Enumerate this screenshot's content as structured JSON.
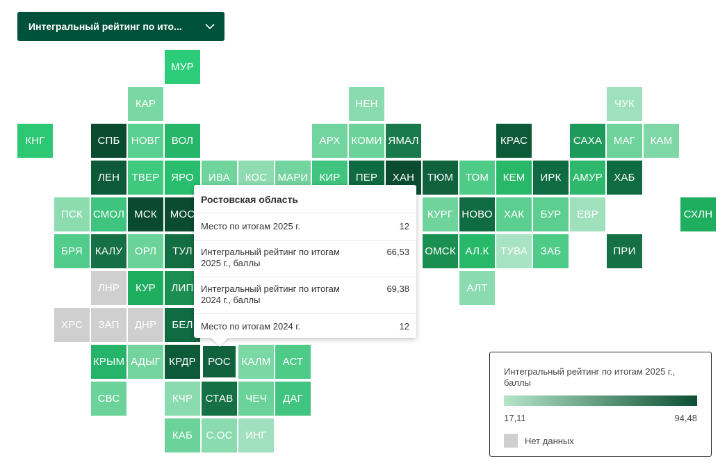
{
  "dropdown": {
    "label": "Интегральный рейтинг по ито...",
    "chevron_icon": "chevron-down-icon"
  },
  "tiles": [
    {
      "code": "МУР",
      "row": 0,
      "col": 4,
      "color": "#2dcc7a"
    },
    {
      "code": "КАР",
      "row": 1,
      "col": 3,
      "color": "#79d8a3"
    },
    {
      "code": "НЕН",
      "row": 1,
      "col": 9,
      "color": "#8adcb0"
    },
    {
      "code": "ЧУК",
      "row": 1,
      "col": 16,
      "color": "#9fe0bd"
    },
    {
      "code": "КНГ",
      "row": 2,
      "col": 0,
      "color": "#2cc874"
    },
    {
      "code": "СПБ",
      "row": 2,
      "col": 2,
      "color": "#0b4c31"
    },
    {
      "code": "НОВГ",
      "row": 2,
      "col": 3,
      "color": "#59d08f"
    },
    {
      "code": "ВОЛ",
      "row": 2,
      "col": 4,
      "color": "#26b569"
    },
    {
      "code": "АРХ",
      "row": 2,
      "col": 8,
      "color": "#72d49e"
    },
    {
      "code": "КОМИ",
      "row": 2,
      "col": 9,
      "color": "#6bd39a"
    },
    {
      "code": "ЯМАЛ",
      "row": 2,
      "col": 10,
      "color": "#187a4a"
    },
    {
      "code": "КРАС",
      "row": 2,
      "col": 13,
      "color": "#0d5a39"
    },
    {
      "code": "САХА",
      "row": 2,
      "col": 15,
      "color": "#1e9b5a"
    },
    {
      "code": "МАГ",
      "row": 2,
      "col": 16,
      "color": "#6ed29b"
    },
    {
      "code": "КАМ",
      "row": 2,
      "col": 17,
      "color": "#7fd7a7"
    },
    {
      "code": "ЛЕН",
      "row": 3,
      "col": 2,
      "color": "#0d5a39"
    },
    {
      "code": "ТВЕР",
      "row": 3,
      "col": 3,
      "color": "#3ec97f"
    },
    {
      "code": "ЯРО",
      "row": 3,
      "col": 4,
      "color": "#28be6e"
    },
    {
      "code": "ИВА",
      "row": 3,
      "col": 5,
      "color": "#70d59d"
    },
    {
      "code": "КОС",
      "row": 3,
      "col": 6,
      "color": "#8fdcb2"
    },
    {
      "code": "МАРИ",
      "row": 3,
      "col": 7,
      "color": "#74d49f"
    },
    {
      "code": "КИР",
      "row": 3,
      "col": 8,
      "color": "#40c47f"
    },
    {
      "code": "ПЕР",
      "row": 3,
      "col": 9,
      "color": "#0f6b41"
    },
    {
      "code": "ХАН",
      "row": 3,
      "col": 10,
      "color": "#0b4c31"
    },
    {
      "code": "ТЮМ",
      "row": 3,
      "col": 11,
      "color": "#10623d"
    },
    {
      "code": "ТОМ",
      "row": 3,
      "col": 12,
      "color": "#4fcb88"
    },
    {
      "code": "КЕМ",
      "row": 3,
      "col": 13,
      "color": "#27b86a"
    },
    {
      "code": "ИРК",
      "row": 3,
      "col": 14,
      "color": "#0f6b41"
    },
    {
      "code": "АМУР",
      "row": 3,
      "col": 15,
      "color": "#2eb86e"
    },
    {
      "code": "ХАБ",
      "row": 3,
      "col": 16,
      "color": "#0f6b41"
    },
    {
      "code": "ПСК",
      "row": 4,
      "col": 1,
      "color": "#8cdcb0"
    },
    {
      "code": "СМОЛ",
      "row": 4,
      "col": 2,
      "color": "#3fc47f"
    },
    {
      "code": "МСК",
      "row": 4,
      "col": 3,
      "color": "#0a4a30"
    },
    {
      "code": "МОС",
      "row": 4,
      "col": 4,
      "color": "#0b4c31"
    },
    {
      "code": "КУРГ",
      "row": 4,
      "col": 11,
      "color": "#6fd39c"
    },
    {
      "code": "НОВО",
      "row": 4,
      "col": 12,
      "color": "#0f6b41"
    },
    {
      "code": "ХАК",
      "row": 4,
      "col": 13,
      "color": "#5ccf90"
    },
    {
      "code": "БУР",
      "row": 4,
      "col": 14,
      "color": "#5ccf90"
    },
    {
      "code": "ЕВР",
      "row": 4,
      "col": 15,
      "color": "#9fe0bd"
    },
    {
      "code": "СХЛН",
      "row": 4,
      "col": 18,
      "color": "#1fae60"
    },
    {
      "code": "БРЯ",
      "row": 5,
      "col": 1,
      "color": "#52cc8a"
    },
    {
      "code": "КАЛУ",
      "row": 5,
      "col": 2,
      "color": "#157145"
    },
    {
      "code": "ОРЛ",
      "row": 5,
      "col": 3,
      "color": "#6bd39a"
    },
    {
      "code": "ТУЛ",
      "row": 5,
      "col": 4,
      "color": "#146e43"
    },
    {
      "code": "ОМСК",
      "row": 5,
      "col": 11,
      "color": "#1b8e52"
    },
    {
      "code": "АЛ.К",
      "row": 5,
      "col": 12,
      "color": "#27b86a"
    },
    {
      "code": "ТУВА",
      "row": 5,
      "col": 13,
      "color": "#a8e3c4"
    },
    {
      "code": "ЗАБ",
      "row": 5,
      "col": 14,
      "color": "#4fcb88"
    },
    {
      "code": "ПРИ",
      "row": 5,
      "col": 16,
      "color": "#157145"
    },
    {
      "code": "ЛНР",
      "row": 6,
      "col": 2,
      "color": "#cfcfcf"
    },
    {
      "code": "КУР",
      "row": 6,
      "col": 3,
      "color": "#1fae60"
    },
    {
      "code": "ЛИП",
      "row": 6,
      "col": 4,
      "color": "#1b8e52"
    },
    {
      "code": "АЛТ",
      "row": 6,
      "col": 12,
      "color": "#8adcb0"
    },
    {
      "code": "ХРС",
      "row": 7,
      "col": 1,
      "color": "#cfcfcf"
    },
    {
      "code": "ЗАП",
      "row": 7,
      "col": 2,
      "color": "#cfcfcf"
    },
    {
      "code": "ДНР",
      "row": 7,
      "col": 3,
      "color": "#cfcfcf"
    },
    {
      "code": "БЕЛ",
      "row": 7,
      "col": 4,
      "color": "#0f6b41"
    },
    {
      "code": "КРЫМ",
      "row": 8,
      "col": 2,
      "color": "#25b469"
    },
    {
      "code": "АДЫГ",
      "row": 8,
      "col": 3,
      "color": "#74d49f"
    },
    {
      "code": "КРДР",
      "row": 8,
      "col": 4,
      "color": "#0d5a39"
    },
    {
      "code": "РОС",
      "row": 8,
      "col": 5,
      "color": "#10623d",
      "selected": true
    },
    {
      "code": "КАЛМ",
      "row": 8,
      "col": 6,
      "color": "#79d8a3"
    },
    {
      "code": "АСТ",
      "row": 8,
      "col": 7,
      "color": "#4fcb88"
    },
    {
      "code": "СВС",
      "row": 9,
      "col": 2,
      "color": "#6bd39a"
    },
    {
      "code": "КЧР",
      "row": 9,
      "col": 4,
      "color": "#8adcb0"
    },
    {
      "code": "СТАВ",
      "row": 9,
      "col": 5,
      "color": "#157145"
    },
    {
      "code": "ЧЕЧ",
      "row": 9,
      "col": 6,
      "color": "#6bd39a"
    },
    {
      "code": "ДАГ",
      "row": 9,
      "col": 7,
      "color": "#40c47f"
    },
    {
      "code": "КАБ",
      "row": 10,
      "col": 4,
      "color": "#6bd39a"
    },
    {
      "code": "С.ОС",
      "row": 10,
      "col": 5,
      "color": "#8adcb0"
    },
    {
      "code": "ИНГ",
      "row": 10,
      "col": 6,
      "color": "#a0e0be"
    }
  ],
  "tooltip": {
    "title": "Ростовская область",
    "rows": [
      {
        "label": "Место по итогам 2025 г.",
        "value": "12"
      },
      {
        "label": "Интегральный рейтинг по итогам 2025 г., баллы",
        "value": "66,53"
      },
      {
        "label": "Интегральный рейтинг по итогам 2024 г., баллы",
        "value": "69,38"
      },
      {
        "label": "Место по итогам 2024 г.",
        "value": "12"
      }
    ]
  },
  "legend": {
    "title": "Интегральный рейтинг по итогам 2025 г., баллы",
    "min": "17,11",
    "max": "94,48",
    "nodata_label": "Нет данных",
    "gradient_start": "#b4e5c9",
    "gradient_end": "#0d4f33",
    "nodata_color": "#cfcfcf"
  }
}
